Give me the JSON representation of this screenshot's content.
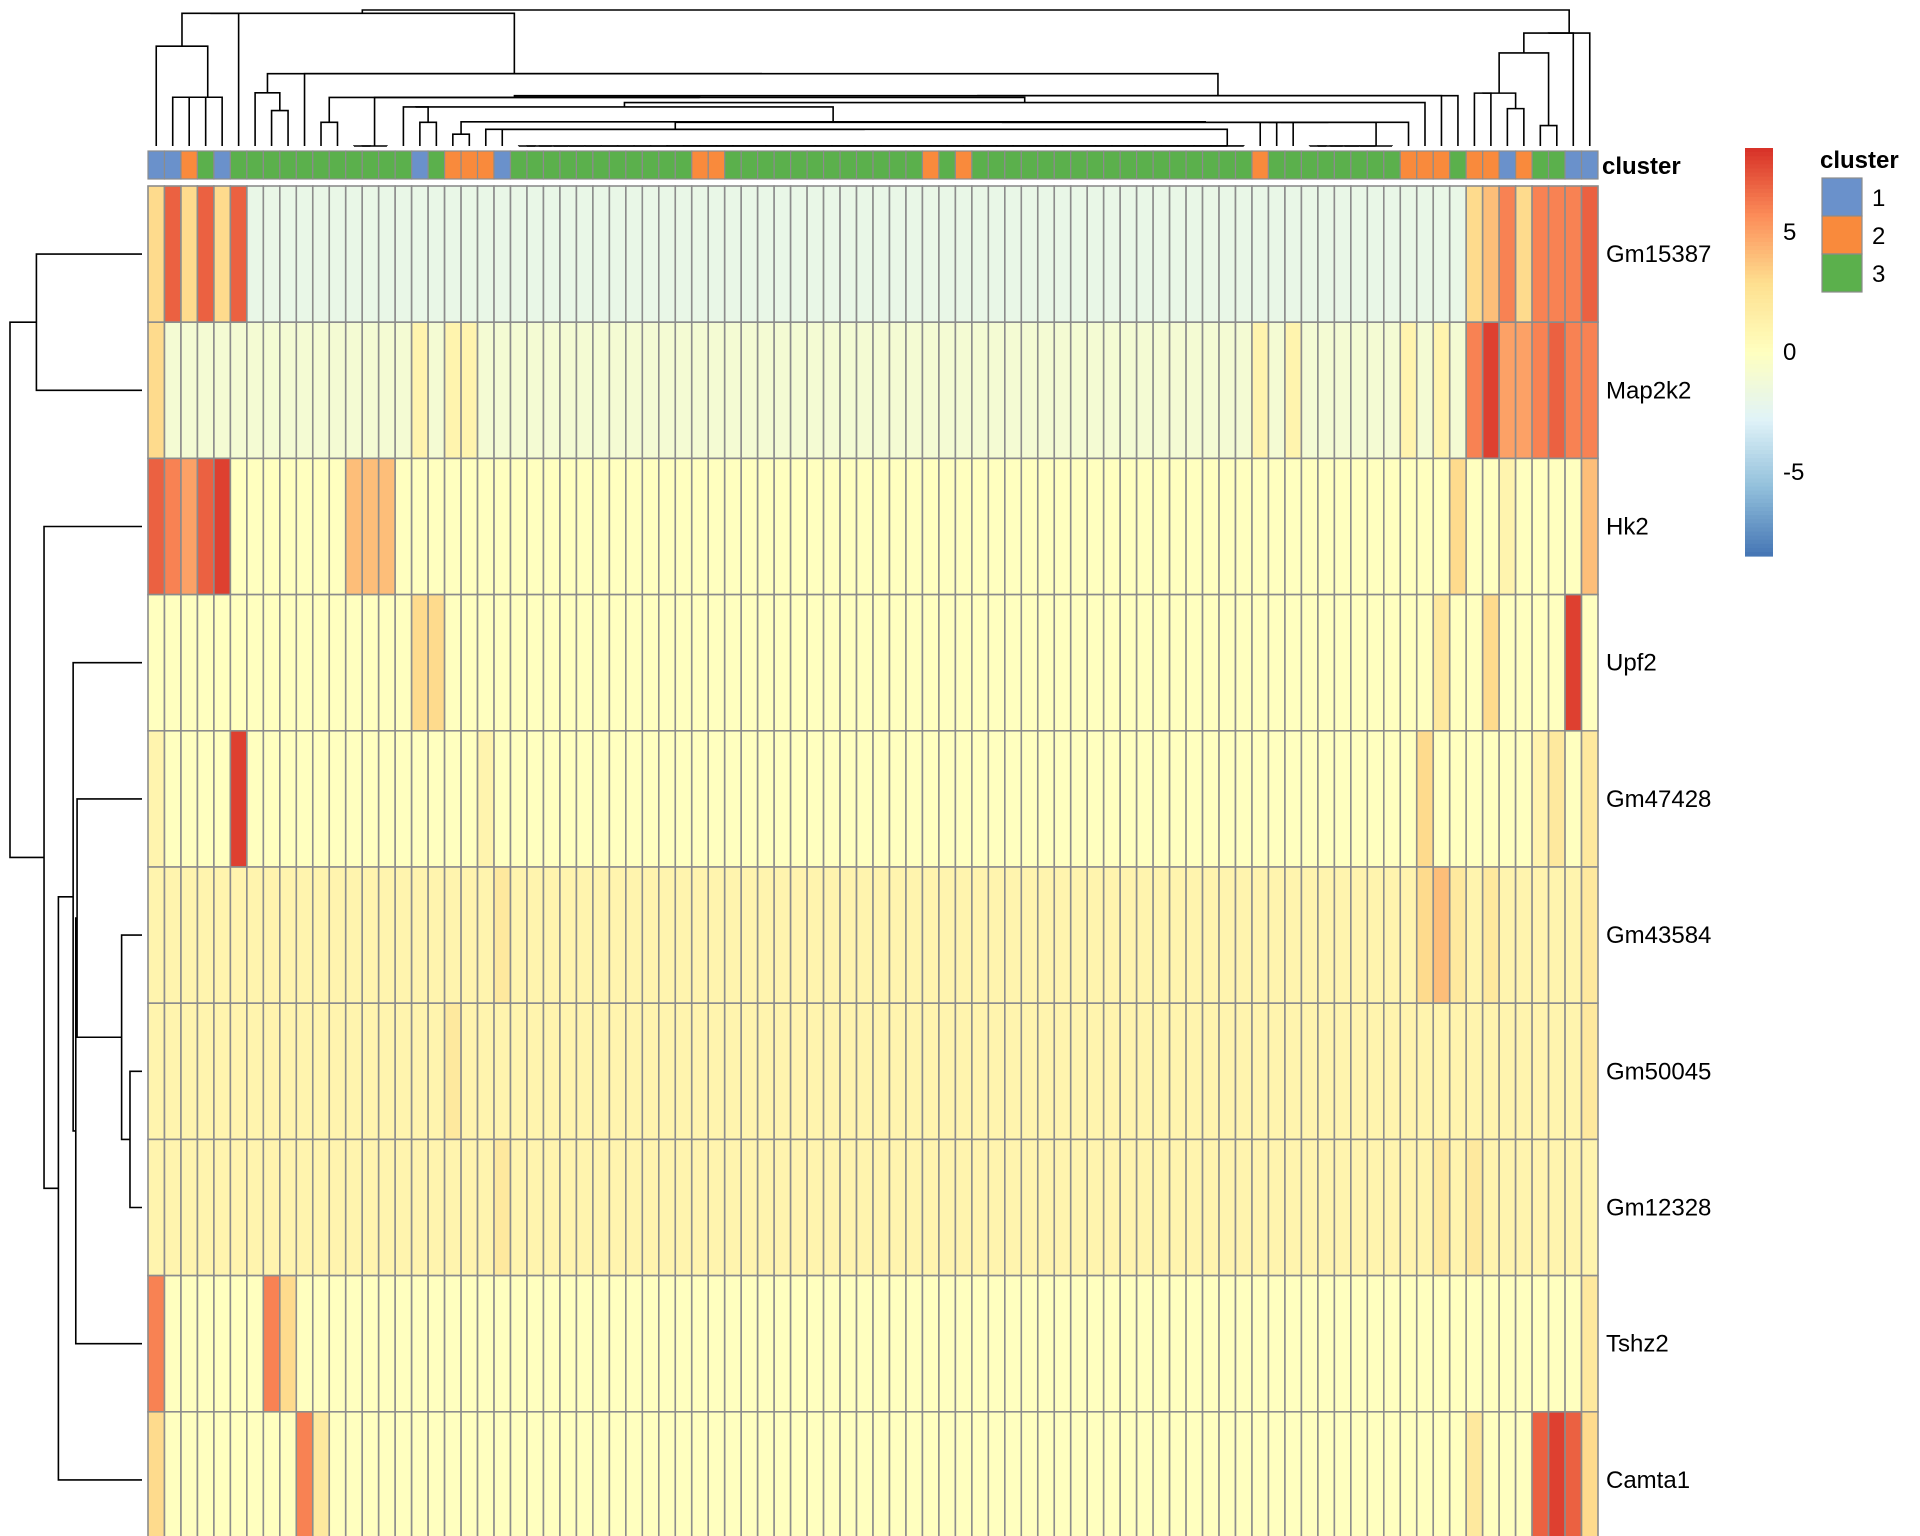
{
  "chart_data": {
    "type": "heatmap",
    "title": "",
    "row_labels": [
      "Gm15387",
      "Map2k2",
      "Hk2",
      "Upf2",
      "Gm47428",
      "Gm43584",
      "Gm50045",
      "Gm12328",
      "Tshz2",
      "Camta1"
    ],
    "n_columns": 88,
    "column_annotation": {
      "name": "cluster",
      "levels": [
        "1",
        "2",
        "3"
      ],
      "colors": {
        "1": "#6A91CB",
        "2": "#F98A3C",
        "3": "#5BB04C"
      },
      "values": [
        1,
        1,
        2,
        3,
        1,
        3,
        3,
        3,
        3,
        3,
        3,
        3,
        3,
        3,
        3,
        3,
        1,
        3,
        2,
        2,
        2,
        1,
        3,
        3,
        3,
        3,
        3,
        3,
        3,
        3,
        3,
        3,
        3,
        2,
        2,
        3,
        3,
        3,
        3,
        3,
        3,
        3,
        3,
        3,
        3,
        3,
        3,
        2,
        3,
        2,
        3,
        3,
        3,
        3,
        3,
        3,
        3,
        3,
        3,
        3,
        3,
        3,
        3,
        3,
        3,
        3,
        3,
        2,
        3,
        3,
        3,
        3,
        3,
        3,
        3,
        3,
        2,
        2,
        2,
        3,
        2,
        2,
        1,
        2,
        3,
        3,
        1,
        1
      ]
    },
    "color_scale": {
      "min": -8.5,
      "max": 8.5,
      "ticks": [
        5,
        0,
        -5
      ],
      "tick_labels": [
        "5",
        "0",
        "-5"
      ],
      "palette": [
        "#4575B4",
        "#91BFDB",
        "#E0F3F8",
        "#FFFFBF",
        "#FEE090",
        "#FC8D59",
        "#D73027"
      ]
    },
    "values": [
      [
        3,
        7,
        3,
        7,
        3,
        7,
        -2,
        -2,
        -2,
        -2,
        -2,
        -2,
        -2,
        -2,
        -2,
        -2,
        -2,
        -2,
        -2,
        -2,
        -2,
        -2,
        -2,
        -2,
        -2,
        -2,
        -2,
        -2,
        -2,
        -2,
        -2,
        -2,
        -2,
        -2,
        -2,
        -2,
        -2,
        -2,
        -2,
        -2,
        -2,
        -2,
        -2,
        -2,
        -2,
        -2,
        -2,
        -2,
        -2,
        -2,
        -2,
        -2,
        -2,
        -2,
        -2,
        -2,
        -2,
        -2,
        -2,
        -2,
        -2,
        -2,
        -2,
        -2,
        -2,
        -2,
        -2,
        -2,
        -2,
        -2,
        -2,
        -2,
        -2,
        -2,
        -2,
        -2,
        -2,
        -2,
        -2,
        -2,
        3,
        4,
        6,
        3,
        6,
        6,
        6,
        7
      ],
      [
        3,
        -1,
        -1,
        -1,
        -1,
        -1,
        -1,
        -1,
        -1,
        -1,
        -1,
        -1,
        -1,
        -1,
        -1,
        -1,
        1,
        -1,
        1,
        1,
        -1,
        -1,
        -1,
        -1,
        -1,
        -1,
        -1,
        -1,
        -1,
        -1,
        -1,
        -1,
        -1,
        -1,
        -1,
        -1,
        -1,
        -1,
        -1,
        -1,
        -1,
        -1,
        -1,
        -1,
        -1,
        -1,
        -1,
        -1,
        -1,
        -1,
        -1,
        -1,
        -1,
        -1,
        -1,
        -1,
        -1,
        -1,
        -1,
        -1,
        -1,
        -1,
        -1,
        -1,
        -1,
        -1,
        -1,
        1,
        -1,
        1,
        -1,
        -1,
        -1,
        -1,
        -1,
        -1,
        1,
        -1,
        1,
        -1,
        6,
        8,
        5,
        5,
        6,
        7,
        6,
        6
      ],
      [
        7,
        6,
        5,
        7,
        8,
        0,
        0,
        0,
        0,
        0,
        0,
        0,
        4,
        4,
        4,
        0,
        0,
        0,
        0,
        0,
        0,
        0,
        0,
        0,
        0,
        0,
        0,
        0,
        0,
        0,
        0,
        0,
        0,
        0,
        0,
        0,
        0,
        0,
        0,
        0,
        0,
        0,
        0,
        0,
        0,
        0,
        0,
        0,
        0,
        0,
        0,
        0,
        0,
        0,
        0,
        0,
        0,
        0,
        0,
        0,
        0,
        0,
        0,
        0,
        0,
        0,
        0,
        0,
        0,
        0,
        0,
        0,
        0,
        0,
        0,
        0,
        0,
        0,
        0,
        3,
        0,
        0,
        1,
        0,
        0,
        0,
        0,
        4
      ],
      [
        0,
        0,
        0,
        0,
        0,
        0,
        0,
        0,
        0,
        0,
        0,
        0,
        0,
        0,
        0,
        0,
        3,
        3,
        0,
        0,
        0,
        0,
        0,
        0,
        0,
        0,
        0,
        0,
        0,
        0,
        0,
        0,
        0,
        0,
        0,
        0,
        0,
        0,
        0,
        0,
        0,
        0,
        0,
        0,
        0,
        0,
        0,
        0,
        0,
        0,
        0,
        0,
        0,
        0,
        0,
        0,
        0,
        0,
        0,
        0,
        0,
        0,
        0,
        0,
        0,
        0,
        0,
        0,
        0,
        0,
        0,
        0,
        0,
        0,
        0,
        0,
        0,
        0,
        2,
        0,
        0,
        3,
        0,
        0,
        0,
        0,
        8,
        0
      ],
      [
        1,
        0,
        0,
        0,
        0,
        8,
        0,
        0,
        0,
        0,
        0,
        0,
        0,
        0,
        0,
        0,
        0,
        0,
        0,
        0,
        1,
        0,
        0,
        0,
        0,
        0,
        0,
        0,
        0,
        0,
        0,
        0,
        0,
        0,
        0,
        0,
        0,
        0,
        0,
        0,
        0,
        0,
        0,
        0,
        0,
        0,
        0,
        0,
        0,
        0,
        0,
        0,
        0,
        0,
        0,
        0,
        0,
        0,
        0,
        0,
        0,
        0,
        0,
        0,
        0,
        0,
        0,
        0,
        0,
        0,
        0,
        0,
        0,
        0,
        0,
        0,
        0,
        3,
        0,
        0,
        0,
        0,
        0,
        0,
        1,
        2,
        0,
        2
      ],
      [
        1,
        1,
        1,
        1,
        1,
        1,
        1,
        1,
        1,
        1,
        1,
        1,
        1,
        1,
        1,
        1,
        1,
        1,
        1,
        1,
        1,
        2,
        1,
        1,
        1,
        1,
        1,
        1,
        1,
        1,
        1,
        1,
        1,
        1,
        1,
        1,
        1,
        1,
        1,
        1,
        1,
        1,
        1,
        1,
        1,
        1,
        1,
        1,
        1,
        1,
        1,
        1,
        1,
        1,
        1,
        1,
        1,
        1,
        1,
        1,
        1,
        1,
        1,
        1,
        1,
        1,
        1,
        1,
        1,
        1,
        1,
        1,
        1,
        1,
        1,
        1,
        1,
        3,
        4,
        2,
        1,
        2,
        1,
        1,
        1,
        1,
        1,
        2
      ],
      [
        1,
        1,
        1,
        1,
        1,
        1,
        1,
        1,
        1,
        1,
        1,
        1,
        1,
        1,
        1,
        1,
        1,
        1,
        2,
        1,
        1,
        1,
        1,
        1,
        1,
        1,
        1,
        1,
        1,
        1,
        1,
        1,
        1,
        1,
        1,
        1,
        1,
        1,
        1,
        1,
        1,
        1,
        1,
        1,
        1,
        1,
        1,
        1,
        1,
        1,
        1,
        1,
        1,
        1,
        1,
        1,
        1,
        1,
        1,
        1,
        1,
        1,
        1,
        1,
        1,
        1,
        1,
        1,
        1,
        1,
        1,
        1,
        1,
        1,
        1,
        1,
        1,
        1,
        1,
        1,
        1,
        1,
        1,
        1,
        1,
        1,
        1,
        2
      ],
      [
        1,
        1,
        1,
        1,
        1,
        1,
        1,
        1,
        1,
        1,
        1,
        1,
        1,
        1,
        1,
        1,
        1,
        1,
        1,
        1,
        1,
        2,
        1,
        1,
        1,
        1,
        1,
        1,
        1,
        1,
        1,
        1,
        1,
        1,
        1,
        1,
        1,
        1,
        1,
        1,
        1,
        1,
        1,
        1,
        1,
        1,
        1,
        1,
        1,
        1,
        1,
        1,
        1,
        1,
        1,
        1,
        1,
        1,
        1,
        1,
        1,
        1,
        1,
        1,
        1,
        1,
        1,
        1,
        1,
        1,
        1,
        1,
        1,
        1,
        1,
        1,
        1,
        1,
        2,
        1,
        2,
        1,
        1,
        1,
        1,
        1,
        1,
        1
      ],
      [
        6,
        0,
        0,
        0,
        0,
        0,
        0,
        6,
        3,
        0,
        0,
        0,
        0,
        0,
        0,
        0,
        0,
        0,
        0,
        0,
        0,
        0,
        0,
        0,
        0,
        0,
        0,
        0,
        0,
        0,
        0,
        0,
        0,
        0,
        0,
        0,
        0,
        0,
        0,
        0,
        0,
        0,
        0,
        0,
        0,
        0,
        0,
        0,
        0,
        0,
        0,
        0,
        0,
        0,
        0,
        0,
        0,
        0,
        0,
        0,
        0,
        0,
        0,
        0,
        0,
        0,
        0,
        0,
        0,
        0,
        0,
        0,
        0,
        0,
        0,
        0,
        0,
        0,
        0,
        0,
        0,
        0,
        0,
        0,
        0,
        0,
        0,
        2
      ],
      [
        3,
        0,
        0,
        0,
        0,
        0,
        0,
        0,
        0,
        6,
        2,
        0,
        0,
        0,
        0,
        0,
        0,
        0,
        0,
        0,
        0,
        0,
        0,
        0,
        0,
        0,
        0,
        0,
        0,
        0,
        0,
        0,
        0,
        0,
        0,
        0,
        0,
        0,
        0,
        0,
        0,
        0,
        0,
        0,
        0,
        0,
        0,
        0,
        0,
        0,
        0,
        0,
        0,
        0,
        0,
        0,
        0,
        0,
        0,
        0,
        0,
        0,
        0,
        0,
        0,
        0,
        0,
        0,
        0,
        0,
        0,
        0,
        0,
        0,
        0,
        0,
        0,
        0,
        0,
        0,
        2,
        0,
        0,
        0,
        7,
        8,
        7,
        3
      ]
    ]
  }
}
